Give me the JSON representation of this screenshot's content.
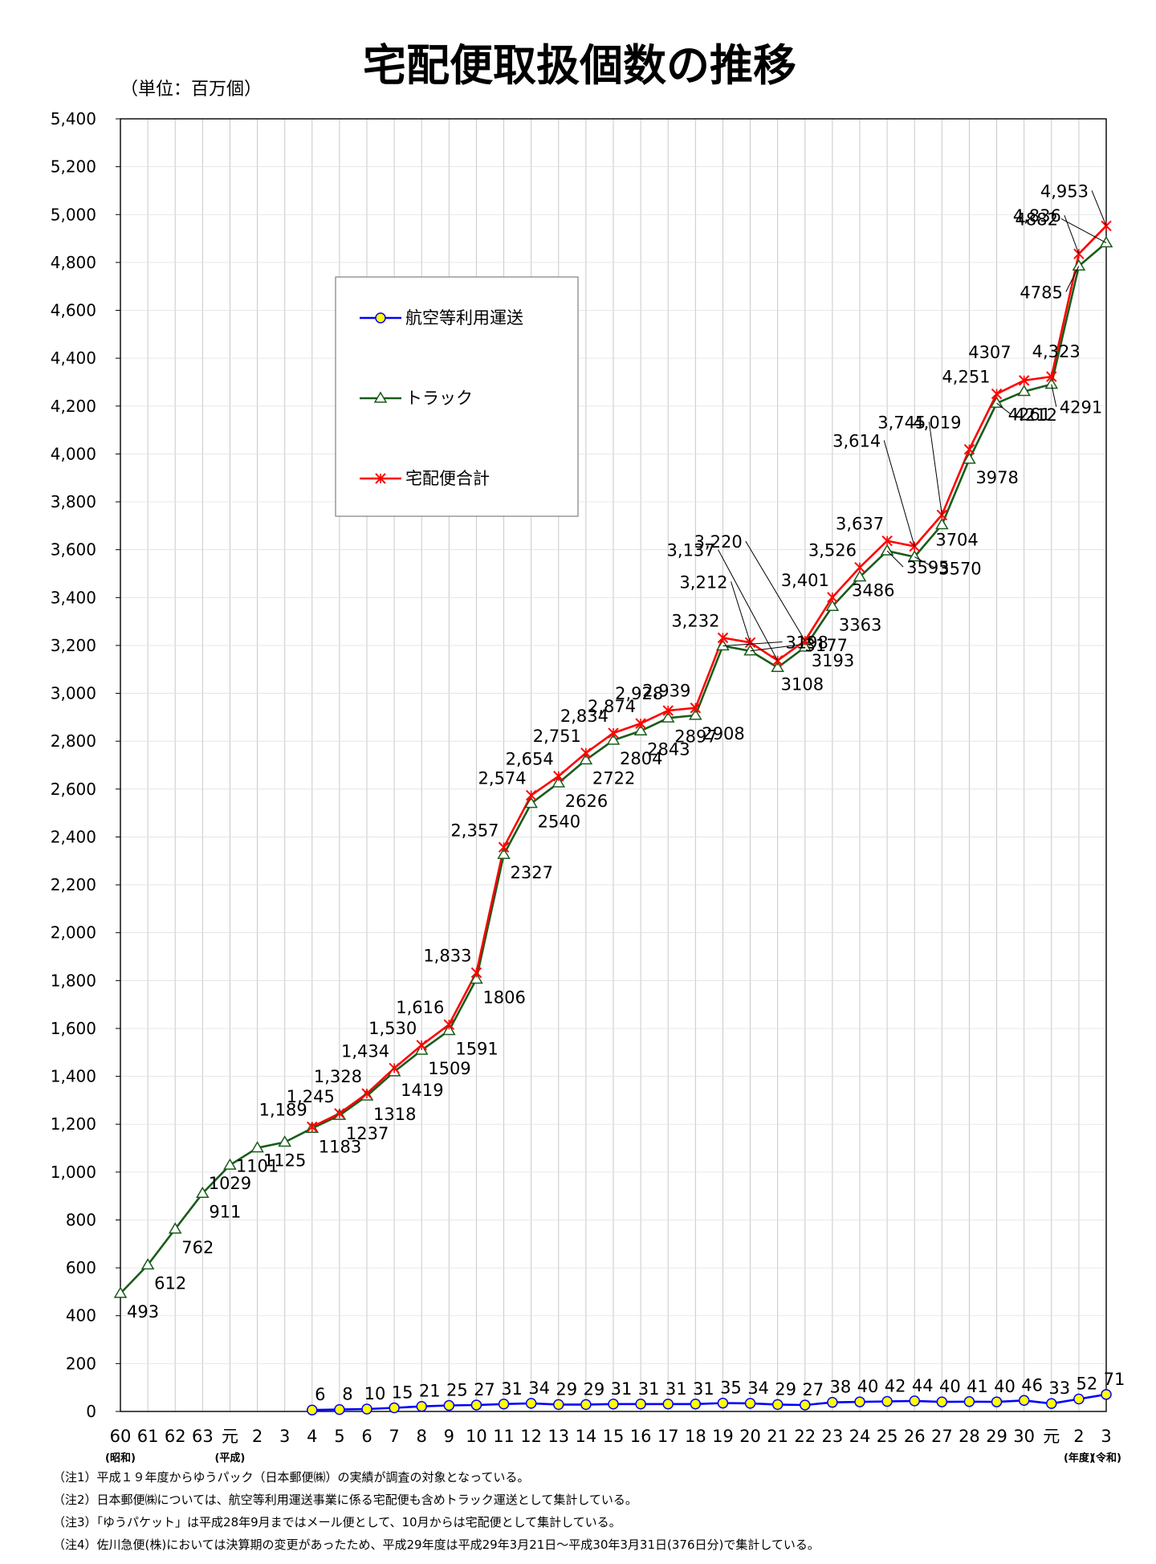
{
  "chart_data": {
    "type": "line",
    "title": "宅配便取扱個数の推移",
    "unit_label": "（単位：百万個）",
    "ylim": [
      0,
      5400
    ],
    "ytick_step": 200,
    "grid": true,
    "legend_position": "upper-left",
    "categories": [
      "60",
      "61",
      "62",
      "63",
      "元",
      "2",
      "3",
      "4",
      "5",
      "6",
      "7",
      "8",
      "9",
      "10",
      "11",
      "12",
      "13",
      "14",
      "15",
      "16",
      "17",
      "18",
      "19",
      "20",
      "21",
      "22",
      "23",
      "24",
      "25",
      "26",
      "27",
      "28",
      "29",
      "30",
      "元",
      "2",
      "3"
    ],
    "era_labels": [
      {
        "index": 0,
        "text": "(昭和)"
      },
      {
        "index": 4,
        "text": "(平成)"
      },
      {
        "index": 35,
        "text": "(年度)"
      },
      {
        "index": 36,
        "text": "(令和)"
      }
    ],
    "series": [
      {
        "name": "航空等利用運送",
        "color": "#0000ff",
        "marker": "circle",
        "values": [
          null,
          null,
          null,
          null,
          null,
          null,
          null,
          6,
          8,
          10,
          15,
          21,
          25,
          27,
          31,
          34,
          29,
          29,
          31,
          31,
          31,
          31,
          35,
          34,
          29,
          27,
          38,
          40,
          42,
          44,
          40,
          41,
          40,
          46,
          33,
          52,
          71
        ],
        "labels": [
          null,
          null,
          null,
          null,
          null,
          null,
          null,
          "6",
          "8",
          "10",
          "15",
          "21",
          "25",
          "27",
          "31",
          "34",
          "29",
          "29",
          "31",
          "31",
          "31",
          "31",
          "35",
          "34",
          "29",
          "27",
          "38",
          "40",
          "42",
          "44",
          "40",
          "41",
          "40",
          "46",
          "33",
          "52",
          "71"
        ]
      },
      {
        "name": "トラック",
        "color": "#1a5c1a",
        "marker": "triangle",
        "values": [
          493,
          612,
          762,
          911,
          1029,
          1101,
          1125,
          1183,
          1237,
          1318,
          1419,
          1509,
          1591,
          1806,
          2327,
          2540,
          2626,
          2722,
          2804,
          2843,
          2897,
          2908,
          3198,
          3177,
          3108,
          3193,
          3363,
          3486,
          3595,
          3570,
          3704,
          3978,
          4212,
          4261,
          4291,
          4785,
          4882
        ],
        "labels": [
          "493",
          "612",
          "762",
          "911",
          "1029",
          "1101",
          "1125",
          "1183",
          "1237",
          "1318",
          "1419",
          "1509",
          "1591",
          "1806",
          "2327",
          "2540",
          "2626",
          "2722",
          "2804",
          "2843",
          "2897",
          "2908",
          "3198",
          "3177",
          "3108",
          "3193",
          "3363",
          "3486",
          "3595",
          "3570",
          "3704",
          "3978",
          "4212",
          "4261",
          "4291",
          "4785",
          "4882"
        ]
      },
      {
        "name": "宅配便合計",
        "color": "#ff0000",
        "marker": "x",
        "values": [
          null,
          null,
          null,
          null,
          null,
          null,
          null,
          1189,
          1245,
          1328,
          1434,
          1530,
          1616,
          1833,
          2357,
          2574,
          2654,
          2751,
          2834,
          2874,
          2928,
          2939,
          3232,
          3212,
          3137,
          3220,
          3401,
          3526,
          3637,
          3614,
          3745,
          4019,
          4251,
          4307,
          4323,
          4836,
          4953
        ],
        "labels": [
          null,
          null,
          null,
          null,
          null,
          null,
          null,
          "1,189",
          "1,245",
          "1,328",
          "1,434",
          "1,530",
          "1,616",
          "1,833",
          "2,357",
          "2,574",
          "2,654",
          "2,751",
          "2,834",
          "2,874",
          "2,928",
          "2,939",
          "3,232",
          "3,212",
          "3,137",
          "3,220",
          "3,401",
          "3,526",
          "3,637",
          "3,614",
          "3,745",
          "4,019",
          "4,251",
          "4307",
          "4,323",
          "4,836",
          "4,953"
        ]
      }
    ]
  },
  "notes": [
    "（注1）平成１９年度からゆうパック（日本郵便㈱）の実績が調査の対象となっている。",
    "（注2）日本郵便㈱については、航空等利用運送事業に係る宅配便も含めトラック運送として集計している。",
    "（注3）「ゆうパケット」は平成28年9月まではメール便として、10月からは宅配便として集計している。",
    "（注4）佐川急便(株)においては決算期の変更があったため、平成29年度は平成29年3月21日～平成30年3月31日(376日分)で集計している。"
  ]
}
